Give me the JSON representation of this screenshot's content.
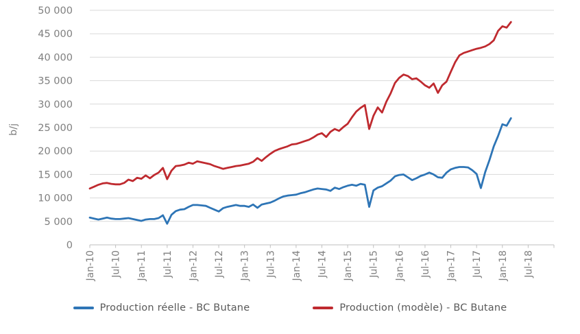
{
  "chart_data": {
    "type": "line",
    "title": "",
    "xlabel": "",
    "ylabel": "b/j",
    "ylim": [
      0,
      50000
    ],
    "y_tick_step": 5000,
    "grid": "horizontal",
    "legend_position": "bottom",
    "x_unit": "month",
    "x_range_plotted": "Jan-10 to Mar-18, monthly",
    "x_tick_labels": [
      "Jan-10",
      "Jul-10",
      "Jan-11",
      "Jul-11",
      "Jan-12",
      "Jul-12",
      "Jan-13",
      "Jul-13",
      "Jan-14",
      "Jul-14",
      "Jan-15",
      "Jul-15",
      "Jan-16",
      "Jul-16",
      "Jan-17",
      "Jul-17",
      "Jan-18",
      "Jul-18"
    ],
    "y_tick_values": [
      0,
      5000,
      10000,
      15000,
      20000,
      25000,
      30000,
      35000,
      40000,
      45000,
      50000
    ],
    "y_tick_labels": [
      "0",
      "5 000",
      "10 000",
      "15 000",
      "20 000",
      "25 000",
      "30 000",
      "35 000",
      "40 000",
      "45 000",
      "50 000"
    ],
    "series": [
      {
        "name": "Production réelle - BC Butane",
        "color": "#2E75B6",
        "values": [
          5800,
          5600,
          5400,
          5600,
          5800,
          5600,
          5500,
          5500,
          5600,
          5700,
          5500,
          5300,
          5100,
          5400,
          5500,
          5500,
          5700,
          6300,
          4500,
          6400,
          7200,
          7500,
          7600,
          8100,
          8500,
          8500,
          8400,
          8300,
          7900,
          7500,
          7100,
          7800,
          8100,
          8300,
          8500,
          8300,
          8300,
          8100,
          8600,
          7900,
          8600,
          8800,
          9000,
          9400,
          9900,
          10300,
          10500,
          10600,
          10700,
          11000,
          11200,
          11500,
          11800,
          12000,
          11900,
          11800,
          11500,
          12200,
          11900,
          12300,
          12600,
          12800,
          12600,
          13000,
          12800,
          8100,
          11600,
          12200,
          12500,
          13100,
          13700,
          14600,
          14900,
          15000,
          14400,
          13800,
          14200,
          14700,
          15000,
          15400,
          15000,
          14400,
          14300,
          15400,
          16100,
          16400,
          16600,
          16600,
          16500,
          15900,
          15100,
          12100,
          15500,
          18100,
          21000,
          23200,
          25700,
          25400,
          27000
        ]
      },
      {
        "name": "Production (modèle) - BC Butane",
        "color": "#BF2A2F",
        "values": [
          12000,
          12400,
          12800,
          13100,
          13200,
          13000,
          12900,
          12900,
          13200,
          13900,
          13600,
          14300,
          14100,
          14800,
          14200,
          14900,
          15400,
          16400,
          14000,
          15800,
          16800,
          16900,
          17100,
          17500,
          17300,
          17800,
          17600,
          17400,
          17200,
          16800,
          16500,
          16200,
          16400,
          16600,
          16800,
          16900,
          17100,
          17300,
          17700,
          18500,
          17900,
          18700,
          19400,
          20000,
          20400,
          20700,
          21000,
          21400,
          21500,
          21800,
          22100,
          22400,
          22900,
          23500,
          23800,
          23000,
          24100,
          24700,
          24300,
          25100,
          25800,
          27200,
          28400,
          29200,
          29800,
          24700,
          27500,
          29300,
          28200,
          30500,
          32300,
          34500,
          35600,
          36300,
          36000,
          35300,
          35500,
          34800,
          34000,
          33500,
          34400,
          32400,
          34000,
          34800,
          36900,
          38900,
          40400,
          40900,
          41200,
          41500,
          41800,
          42000,
          42300,
          42800,
          43600,
          45600,
          46600,
          46300,
          47500
        ]
      }
    ]
  },
  "legend": {
    "item1": "Production réelle - BC Butane",
    "item2": "Production (modèle) - BC Butane"
  }
}
